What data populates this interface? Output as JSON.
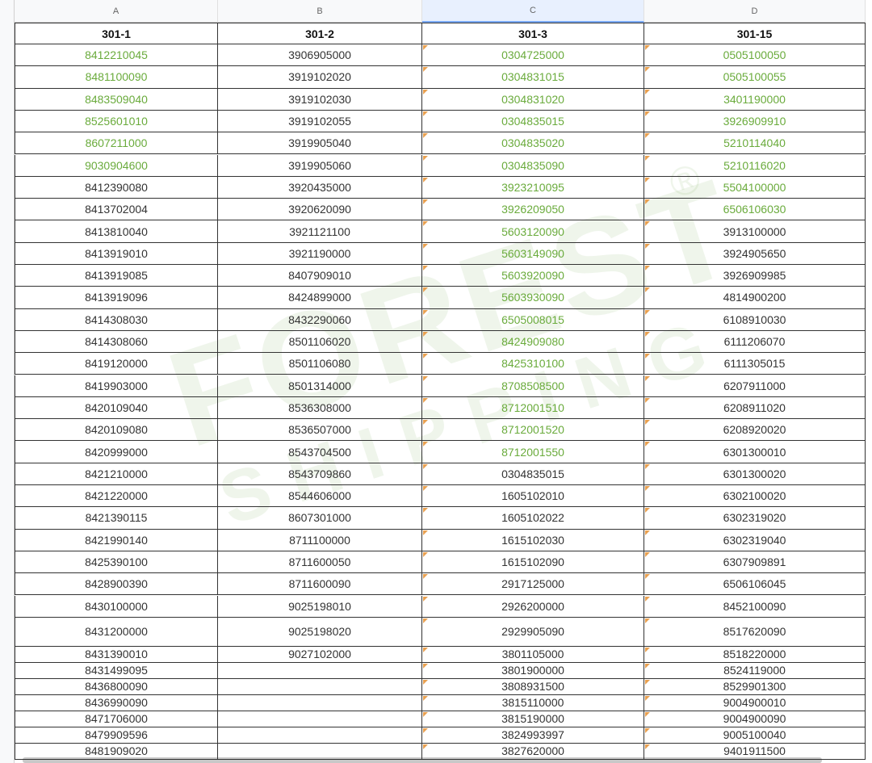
{
  "column_letters": [
    "A",
    "B",
    "C",
    "D"
  ],
  "watermark": {
    "line1": "FOREST",
    "line2": "SHIPPING",
    "mark": "®"
  },
  "columns": [
    {
      "header": "301-1",
      "cells": [
        "8412210045",
        "8481100090",
        "8483509040",
        "8525601010",
        "8607211000",
        "9030904600",
        "8412390080",
        "8413702004",
        "8413810040",
        "8413919010",
        "8413919085",
        "8413919096",
        "8414308030",
        "8414308060",
        "8419120000",
        "8419903000",
        "8420109040",
        "8420109080",
        "8420999000",
        "8421210000",
        "8421220000",
        "8421390115",
        "8421990140",
        "8425390100",
        "8428900390",
        "8430100000",
        "8431200000",
        "8431390010",
        "8431499095",
        "8436800090",
        "8436990090",
        "8471706000",
        "8479909596",
        "8481909020"
      ]
    },
    {
      "header": "301-2",
      "cells": [
        "3906905000",
        "3919102020",
        "3919102030",
        "3919102055",
        "3919905040",
        "3919905060",
        "3920435000",
        "3920620090",
        "3921121100",
        "3921190000",
        "8407909010",
        "8424899000",
        "8432290060",
        "8501106020",
        "8501106080",
        "8501314000",
        "8536308000",
        "8536507000",
        "8543704500",
        "8543709860",
        "8544606000",
        "8607301000",
        "8711100000",
        "8711600050",
        "8711600090",
        "9025198010",
        "9025198020",
        "9027102000"
      ]
    },
    {
      "header": "301-3",
      "cells": [
        "0304725000",
        "0304831015",
        "0304831020",
        "0304835015",
        "0304835020",
        "0304835090",
        "3923210095",
        "3926209050",
        "5603120090",
        "5603149090",
        "5603920090",
        "5603930090",
        "6505008015",
        "8424909080",
        "8425310100",
        "8708508500",
        "8712001510",
        "8712001520",
        "8712001550",
        "0304835015",
        "1605102010",
        "1605102022",
        "1615102030",
        "1615102090",
        "2917125000",
        "2926200000",
        "2929905090",
        "3801105000",
        "3801900000",
        "3808931500",
        "3815110000",
        "3815190000",
        "3824993997",
        "3827620000"
      ]
    },
    {
      "header": "301-15",
      "cells": [
        "0505100050",
        "0505100055",
        "3401190000",
        "3926909910",
        "5210114040",
        "5210116020",
        "5504100000",
        "6506106030",
        "3913100000",
        "3924905650",
        "3926909985",
        "4814900200",
        "6108910030",
        "6111206070",
        "6111305015",
        "6207911000",
        "6208911020",
        "6208920020",
        "6301300010",
        "6301300020",
        "6302100020",
        "6302319020",
        "6302319040",
        "6307909891",
        "6506106045",
        "8452100090",
        "8517620090",
        "8518220000",
        "8524119000",
        "8529901300",
        "9004900010",
        "9004900090",
        "9005100040",
        "9401911500"
      ]
    }
  ]
}
